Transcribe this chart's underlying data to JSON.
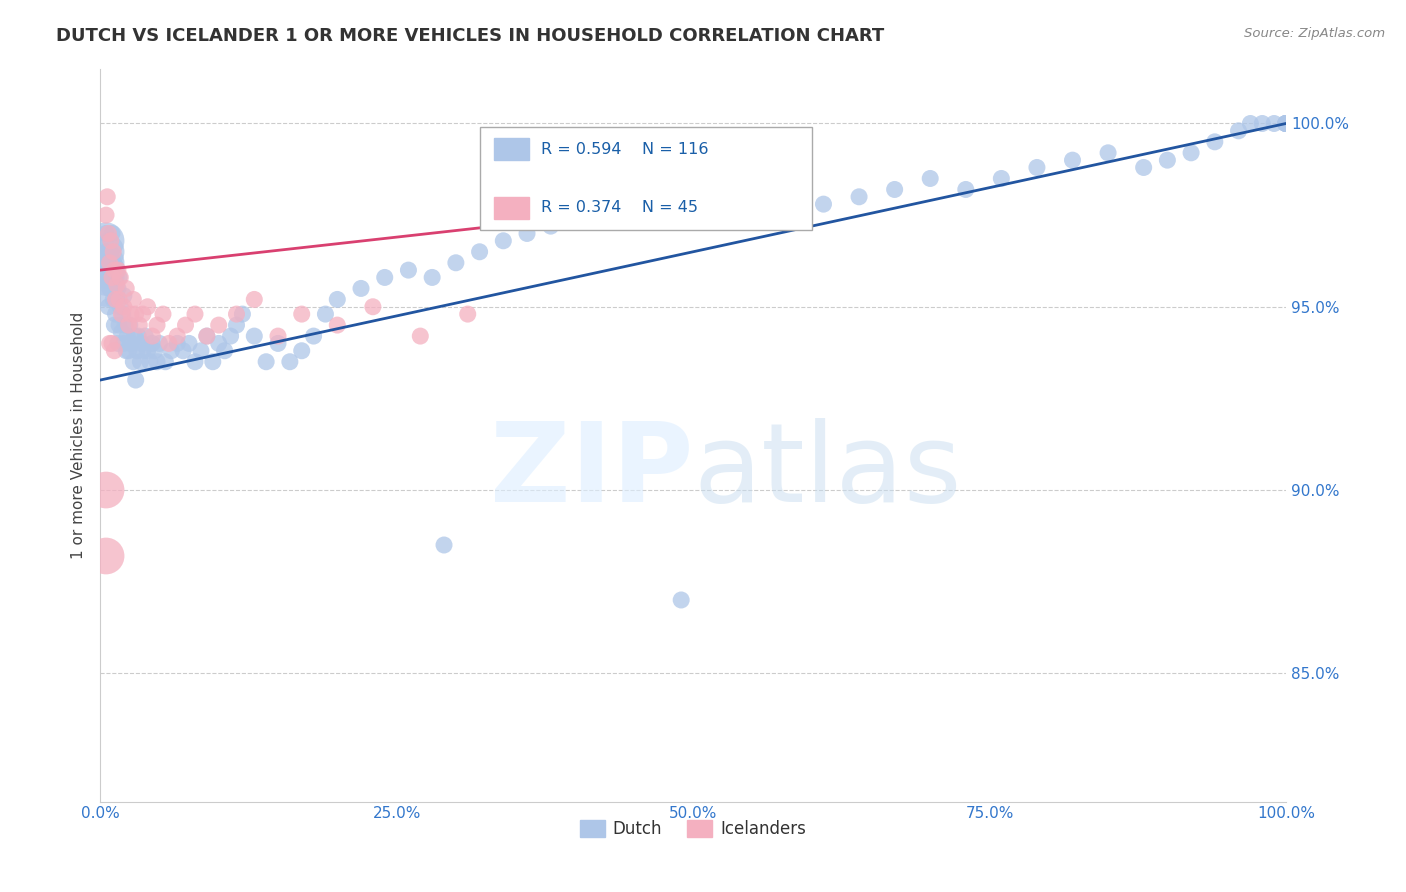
{
  "title": "DUTCH VS ICELANDER 1 OR MORE VEHICLES IN HOUSEHOLD CORRELATION CHART",
  "source": "Source: ZipAtlas.com",
  "ylabel": "1 or more Vehicles in Household",
  "watermark": "ZIPatlas",
  "dutch_color": "#aec6e8",
  "dutch_line_color": "#2255a0",
  "icelander_color": "#f4b0c0",
  "icelander_line_color": "#d94070",
  "legend_r_color": "#1a5fa8",
  "background_color": "#ffffff",
  "grid_color": "#cccccc",
  "xmin": 0.0,
  "xmax": 1.0,
  "ymin": 0.815,
  "ymax": 1.015,
  "ytick_labels": [
    "85.0%",
    "90.0%",
    "95.0%",
    "100.0%"
  ],
  "ytick_values": [
    0.85,
    0.9,
    0.95,
    1.0
  ],
  "xtick_labels": [
    "0.0%",
    "25.0%",
    "50.0%",
    "75.0%",
    "100.0%"
  ],
  "xtick_values": [
    0.0,
    0.25,
    0.5,
    0.75,
    1.0
  ],
  "dutch_x": [
    0.005,
    0.005,
    0.005,
    0.007,
    0.008,
    0.009,
    0.01,
    0.01,
    0.01,
    0.011,
    0.012,
    0.012,
    0.013,
    0.013,
    0.014,
    0.015,
    0.015,
    0.016,
    0.016,
    0.017,
    0.018,
    0.019,
    0.02,
    0.02,
    0.021,
    0.022,
    0.023,
    0.024,
    0.025,
    0.026,
    0.028,
    0.029,
    0.03,
    0.031,
    0.032,
    0.034,
    0.035,
    0.036,
    0.038,
    0.04,
    0.042,
    0.044,
    0.046,
    0.048,
    0.05,
    0.055,
    0.06,
    0.065,
    0.07,
    0.075,
    0.08,
    0.085,
    0.09,
    0.095,
    0.1,
    0.105,
    0.11,
    0.115,
    0.12,
    0.13,
    0.14,
    0.15,
    0.16,
    0.17,
    0.18,
    0.19,
    0.2,
    0.22,
    0.24,
    0.26,
    0.28,
    0.3,
    0.32,
    0.34,
    0.36,
    0.38,
    0.4,
    0.43,
    0.46,
    0.49,
    0.52,
    0.55,
    0.58,
    0.61,
    0.64,
    0.67,
    0.7,
    0.73,
    0.76,
    0.79,
    0.82,
    0.85,
    0.88,
    0.9,
    0.92,
    0.94,
    0.96,
    0.97,
    0.98,
    0.99,
    1.0,
    1.0,
    1.0,
    1.0,
    1.0,
    1.0,
    1.0,
    1.0,
    0.49,
    0.29,
    0.005,
    0.005,
    0.005,
    0.005,
    0.005,
    0.005,
    0.005
  ],
  "dutch_y": [
    0.96,
    0.965,
    0.97,
    0.95,
    0.955,
    0.962,
    0.958,
    0.963,
    0.97,
    0.952,
    0.945,
    0.957,
    0.96,
    0.948,
    0.953,
    0.94,
    0.955,
    0.958,
    0.945,
    0.95,
    0.943,
    0.948,
    0.94,
    0.953,
    0.945,
    0.938,
    0.942,
    0.938,
    0.945,
    0.94,
    0.935,
    0.942,
    0.93,
    0.938,
    0.942,
    0.935,
    0.94,
    0.938,
    0.942,
    0.938,
    0.935,
    0.94,
    0.938,
    0.935,
    0.94,
    0.935,
    0.938,
    0.94,
    0.938,
    0.94,
    0.935,
    0.938,
    0.942,
    0.935,
    0.94,
    0.938,
    0.942,
    0.945,
    0.948,
    0.942,
    0.935,
    0.94,
    0.935,
    0.938,
    0.942,
    0.948,
    0.952,
    0.955,
    0.958,
    0.96,
    0.958,
    0.962,
    0.965,
    0.968,
    0.97,
    0.972,
    0.975,
    0.978,
    0.98,
    0.975,
    0.978,
    0.98,
    0.982,
    0.978,
    0.98,
    0.982,
    0.985,
    0.982,
    0.985,
    0.988,
    0.99,
    0.992,
    0.988,
    0.99,
    0.992,
    0.995,
    0.998,
    1.0,
    1.0,
    1.0,
    1.0,
    1.0,
    1.0,
    1.0,
    1.0,
    1.0,
    1.0,
    1.0,
    0.87,
    0.885,
    0.96,
    0.965,
    0.96,
    0.958,
    0.955,
    0.962,
    0.968
  ],
  "dutch_sizes": [
    150,
    150,
    150,
    150,
    150,
    150,
    150,
    150,
    150,
    150,
    150,
    150,
    150,
    150,
    150,
    150,
    150,
    150,
    150,
    150,
    150,
    150,
    150,
    150,
    150,
    150,
    150,
    150,
    150,
    150,
    150,
    150,
    150,
    150,
    150,
    150,
    150,
    150,
    150,
    150,
    150,
    150,
    150,
    150,
    150,
    150,
    150,
    150,
    150,
    150,
    150,
    150,
    150,
    150,
    150,
    150,
    150,
    150,
    150,
    150,
    150,
    150,
    150,
    150,
    150,
    150,
    150,
    150,
    150,
    150,
    150,
    150,
    150,
    150,
    150,
    150,
    150,
    150,
    150,
    150,
    150,
    150,
    150,
    150,
    150,
    150,
    150,
    150,
    150,
    150,
    150,
    150,
    150,
    150,
    150,
    150,
    150,
    150,
    150,
    150,
    150,
    150,
    150,
    150,
    150,
    150,
    150,
    150,
    150,
    150,
    700,
    700,
    700,
    700,
    700,
    700,
    700
  ],
  "icelander_x": [
    0.005,
    0.006,
    0.007,
    0.008,
    0.009,
    0.01,
    0.011,
    0.012,
    0.013,
    0.014,
    0.015,
    0.016,
    0.017,
    0.018,
    0.02,
    0.022,
    0.024,
    0.026,
    0.028,
    0.03,
    0.033,
    0.036,
    0.04,
    0.044,
    0.048,
    0.053,
    0.058,
    0.065,
    0.072,
    0.08,
    0.09,
    0.1,
    0.115,
    0.13,
    0.15,
    0.17,
    0.2,
    0.23,
    0.27,
    0.31,
    0.005,
    0.005,
    0.008,
    0.01,
    0.012
  ],
  "icelander_y": [
    0.975,
    0.98,
    0.97,
    0.962,
    0.968,
    0.958,
    0.965,
    0.96,
    0.952,
    0.956,
    0.96,
    0.952,
    0.958,
    0.948,
    0.95,
    0.955,
    0.945,
    0.948,
    0.952,
    0.948,
    0.945,
    0.948,
    0.95,
    0.942,
    0.945,
    0.948,
    0.94,
    0.942,
    0.945,
    0.948,
    0.942,
    0.945,
    0.948,
    0.952,
    0.942,
    0.948,
    0.945,
    0.95,
    0.942,
    0.948,
    0.9,
    0.882,
    0.94,
    0.94,
    0.938
  ],
  "icelander_sizes": [
    150,
    150,
    150,
    150,
    150,
    150,
    150,
    150,
    150,
    150,
    150,
    150,
    150,
    150,
    150,
    150,
    150,
    150,
    150,
    150,
    150,
    150,
    150,
    150,
    150,
    150,
    150,
    150,
    150,
    150,
    150,
    150,
    150,
    150,
    150,
    150,
    150,
    150,
    150,
    150,
    700,
    700,
    150,
    150,
    150
  ],
  "dutch_trendline_x": [
    0.0,
    1.0
  ],
  "dutch_trendline_y_start": 0.93,
  "dutch_trendline_y_end": 1.0,
  "icelander_trendline_x": [
    0.0,
    0.5
  ],
  "icelander_trendline_y_start": 0.96,
  "icelander_trendline_y_end": 0.978
}
